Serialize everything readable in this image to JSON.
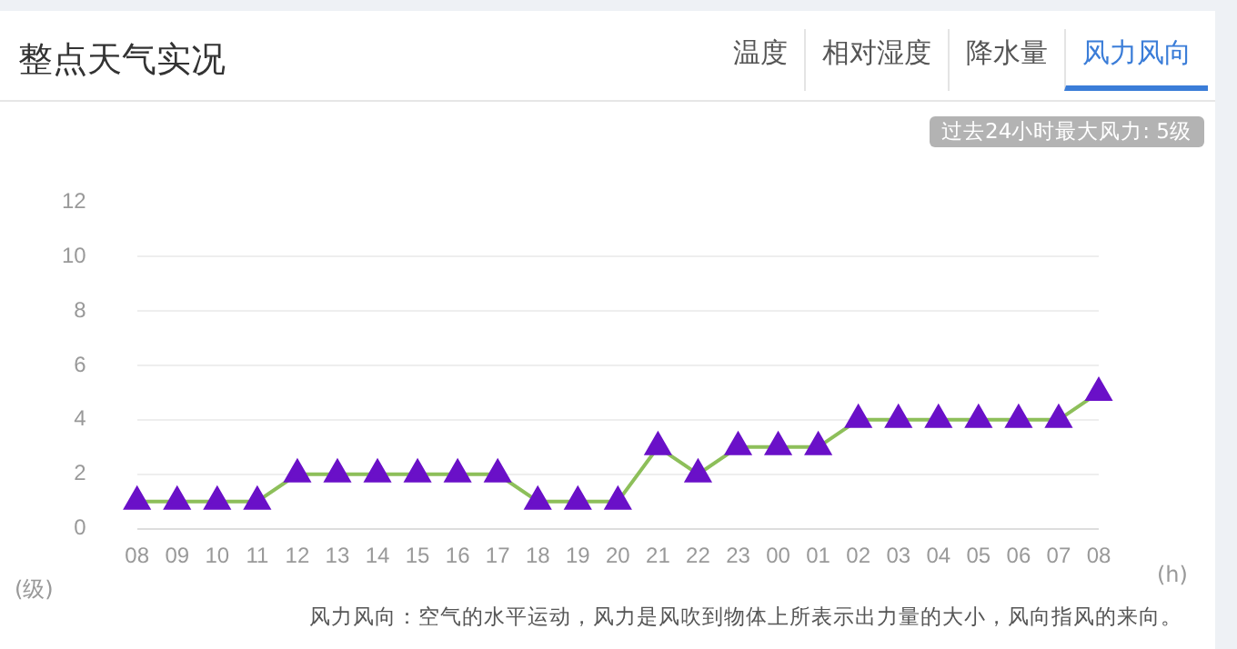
{
  "chart_data": {
    "type": "line",
    "title": "整点天气实况",
    "annotations": [
      "温度",
      "相对湿度",
      "降水量",
      "风力风向",
      "过去24小时最大风力: 5级",
      "风力风向：空气的水平运动，风力是风吹到物体上所表示出力量的大小，风向指风的来向。"
    ],
    "categories": [
      "08",
      "09",
      "10",
      "11",
      "12",
      "13",
      "14",
      "15",
      "16",
      "17",
      "18",
      "19",
      "20",
      "21",
      "22",
      "23",
      "00",
      "01",
      "02",
      "03",
      "04",
      "05",
      "06",
      "07",
      "08"
    ],
    "series": [
      {
        "color": "#8dbf5a",
        "values": [
          1,
          1,
          1,
          1,
          2,
          2,
          2,
          2,
          2,
          2,
          1,
          1,
          1,
          3,
          2,
          3,
          3,
          3,
          4,
          4,
          4,
          4,
          4,
          4,
          5
        ]
      }
    ],
    "marker": "triangle",
    "ylabel": "(级)",
    "xlabel": "(h)",
    "ylim": [
      0,
      12
    ],
    "yticks": [
      0,
      2,
      4,
      6,
      8,
      10,
      12
    ],
    "grid": "y",
    "legend": false
  }
}
